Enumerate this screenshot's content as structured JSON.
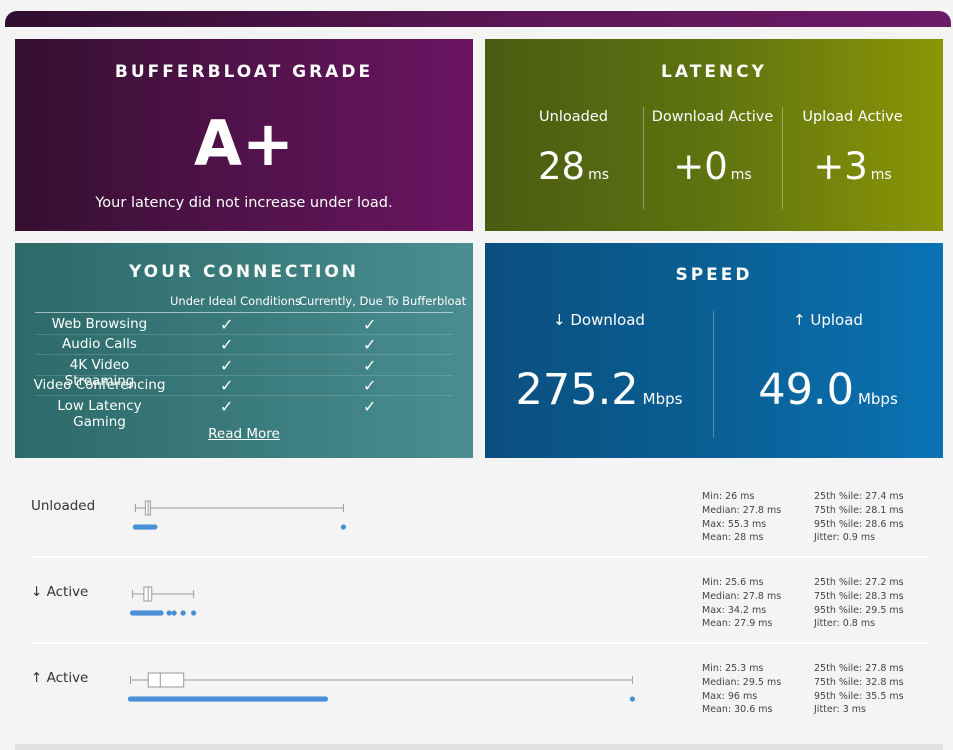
{
  "grade": {
    "title": "BUFFERBLOAT GRADE",
    "letter": "A+",
    "message": "Your latency did not increase under load."
  },
  "latency": {
    "title": "LATENCY",
    "cols": [
      {
        "label": "Unloaded",
        "value": "28",
        "unit": "ms"
      },
      {
        "label": "Download Active",
        "value": "+0",
        "unit": "ms"
      },
      {
        "label": "Upload Active",
        "value": "+3",
        "unit": "ms"
      }
    ]
  },
  "connection": {
    "title": "YOUR CONNECTION",
    "col1": "Under Ideal Conditions",
    "col2": "Currently, Due To Bufferbloat",
    "rows": [
      {
        "label": "Web Browsing",
        "ideal": "✓",
        "current": "✓"
      },
      {
        "label": "Audio Calls",
        "ideal": "✓",
        "current": "✓"
      },
      {
        "label": "4K Video Streaming",
        "ideal": "✓",
        "current": "✓"
      },
      {
        "label": "Video Conferencing",
        "ideal": "✓",
        "current": "✓"
      },
      {
        "label": "Low Latency Gaming",
        "ideal": "✓",
        "current": "✓"
      }
    ],
    "read_more": "Read More"
  },
  "speed": {
    "title": "SPEED",
    "download": {
      "label": "↓ Download",
      "value": "275.2",
      "unit": "Mbps"
    },
    "upload": {
      "label": "↑ Upload",
      "value": "49.0",
      "unit": "Mbps"
    }
  },
  "stats": [
    {
      "label": "Unloaded",
      "left": [
        "Min: 26 ms",
        "Median: 27.8 ms",
        "Max: 55.3 ms",
        "Mean: 28 ms"
      ],
      "right": [
        "25th %ile: 27.4 ms",
        "75th %ile: 28.1 ms",
        "95th %ile: 28.6 ms",
        "Jitter: 0.9 ms"
      ],
      "box": {
        "min": 26,
        "q1": 27.4,
        "median": 27.8,
        "q3": 28.1,
        "max": 55.3
      }
    },
    {
      "label": "↓ Active",
      "left": [
        "Min: 25.6 ms",
        "Median: 27.8 ms",
        "Max: 34.2 ms",
        "Mean: 27.9 ms"
      ],
      "right": [
        "25th %ile: 27.2 ms",
        "75th %ile: 28.3 ms",
        "95th %ile: 29.5 ms",
        "Jitter: 0.8 ms"
      ],
      "box": {
        "min": 25.6,
        "q1": 27.2,
        "median": 27.8,
        "q3": 28.3,
        "max": 34.2
      }
    },
    {
      "label": "↑ Active",
      "left": [
        "Min: 25.3 ms",
        "Median: 29.5 ms",
        "Max: 96 ms",
        "Mean: 30.6 ms"
      ],
      "right": [
        "25th %ile: 27.8 ms",
        "75th %ile: 32.8 ms",
        "95th %ile: 35.5 ms",
        "Jitter: 3 ms"
      ],
      "box": {
        "min": 25.3,
        "q1": 27.8,
        "median": 29.5,
        "q3": 32.8,
        "max": 96
      }
    }
  ],
  "colors": {
    "grade_bg": "#4c1246",
    "latency_bg": "#5f7310",
    "connection_bg": "#3a7b7c",
    "speed_bg": "#0a5f94",
    "dot_color": "#4a90d9"
  }
}
